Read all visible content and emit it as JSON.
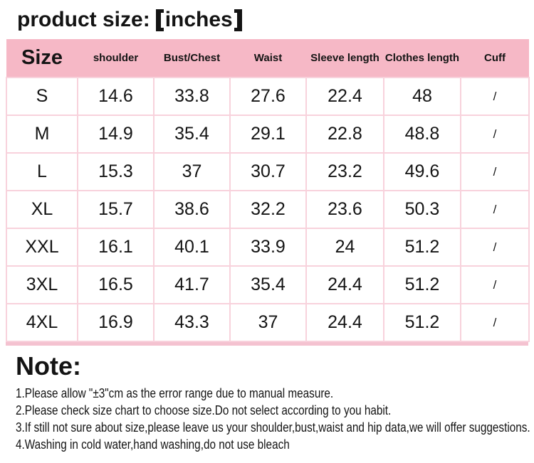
{
  "title": {
    "prefix": "product size:",
    "unit": "inches"
  },
  "table": {
    "columns": [
      "Size",
      "shoulder",
      "Bust/Chest",
      "Waist",
      "Sleeve length",
      "Clothes length",
      "Cuff"
    ],
    "rows": [
      {
        "size": "S",
        "values": [
          "14.6",
          "33.8",
          "27.6",
          "22.4",
          "48",
          "/"
        ]
      },
      {
        "size": "M",
        "values": [
          "14.9",
          "35.4",
          "29.1",
          "22.8",
          "48.8",
          "/"
        ]
      },
      {
        "size": "L",
        "values": [
          "15.3",
          "37",
          "30.7",
          "23.2",
          "49.6",
          "/"
        ]
      },
      {
        "size": "XL",
        "values": [
          "15.7",
          "38.6",
          "32.2",
          "23.6",
          "50.3",
          "/"
        ]
      },
      {
        "size": "XXL",
        "values": [
          "16.1",
          "40.1",
          "33.9",
          "24",
          "51.2",
          "/"
        ]
      },
      {
        "size": "3XL",
        "values": [
          "16.5",
          "41.7",
          "35.4",
          "24.4",
          "51.2",
          "/"
        ]
      },
      {
        "size": "4XL",
        "values": [
          "16.9",
          "43.3",
          "37",
          "24.4",
          "51.2",
          "/"
        ]
      }
    ]
  },
  "note": {
    "heading": "Note:",
    "lines": [
      "1.Please allow \"±3\"cm as the error range due to manual measure.",
      "2.Please check size chart to choose size.Do not select according to you habit.",
      "3.If still not sure about size,please leave us your shoulder,bust,waist and hip data,we will offer suggestions.",
      "4.Washing in cold water,hand washing,do not use bleach"
    ]
  },
  "colors": {
    "header_pink": "#f6b8c6",
    "border_pink": "#f8d2dc",
    "bottom_strip": "#f4c2d0",
    "text": "#141414"
  }
}
